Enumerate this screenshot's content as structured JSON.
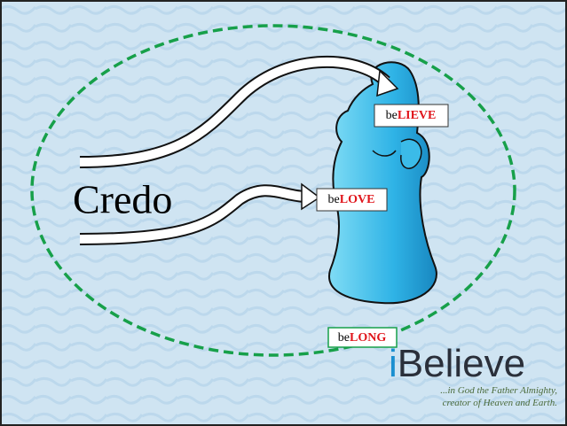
{
  "title": "Credo",
  "labels": [
    {
      "prefix": "be",
      "emphasis": "LIEVE"
    },
    {
      "prefix": "be",
      "emphasis": "LOVE"
    },
    {
      "prefix": "be",
      "emphasis": "LONG"
    }
  ],
  "logo": {
    "mark": "i",
    "word": "Believe"
  },
  "tagline": [
    "...in God the Father Almighty,",
    "creator of Heaven and Earth."
  ]
}
